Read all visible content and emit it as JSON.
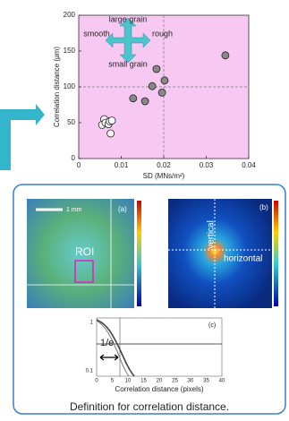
{
  "chart_data": {
    "type": "scatter",
    "y_label": "Correlation distance (μm)",
    "x_label": "SD  (MNs/m²)",
    "xlim": [
      0,
      0.04
    ],
    "xticks": [
      0,
      0.01,
      0.02,
      0.03,
      0.04
    ],
    "ylim": [
      0,
      200
    ],
    "yticks": [
      0,
      50,
      100,
      150,
      200
    ],
    "xref": 0.02,
    "yref": 100,
    "background": "#f7c9f2",
    "annotations": [
      "large grain",
      "smooth",
      "rough",
      "small grain"
    ],
    "series": [
      {
        "color": "#888888",
        "x": [
          0.0128,
          0.0156,
          0.0173,
          0.0183,
          0.0196,
          0.0202,
          0.0345
        ],
        "values": [
          84,
          80,
          101,
          125,
          92,
          109,
          144
        ]
      },
      {
        "color": "#ffffff",
        "x": [
          0.0055,
          0.006,
          0.0063,
          0.007,
          0.0073,
          0.0078,
          0.0075
        ],
        "values": [
          47,
          55,
          50,
          48,
          52,
          53,
          35
        ]
      }
    ]
  },
  "figure": {
    "scale_bar": "1 mm",
    "label_a": "(a)",
    "roi": "ROI",
    "label_b": "(b)",
    "vertical": "vertical",
    "horizontal": "horizontal",
    "label_c": "(c)",
    "one_over_e": "1/e",
    "c_xlabel": "Correlation distance (pixels)",
    "c_xticks": [
      0,
      5,
      10,
      15,
      20,
      25,
      30,
      35,
      40
    ],
    "c_yticks": [
      1,
      0.1
    ],
    "caption": "Definition for correlation distance."
  }
}
